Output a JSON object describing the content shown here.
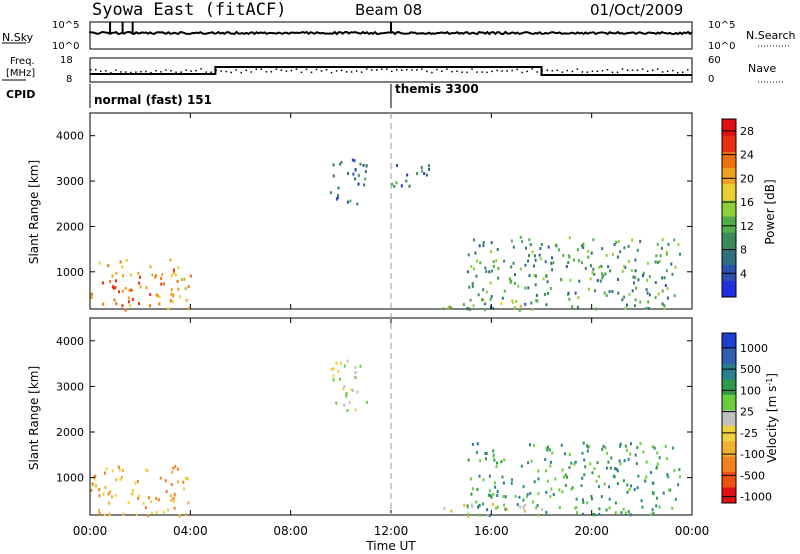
{
  "header": {
    "title": "Syowa East (fitACF)",
    "beam": "Beam 08",
    "date": "01/Oct/2009"
  },
  "top_panel": {
    "left_label": "N.Sky",
    "left_ticks": [
      "10^5",
      "10^0"
    ],
    "right_label": "N.Search",
    "right_ticks": [
      "10^5",
      "10^0"
    ]
  },
  "freq_panel": {
    "left_label_1": "Freq.",
    "left_label_2": "[MHz]",
    "left_ticks": [
      "18",
      "8"
    ],
    "right_label": "Nave",
    "right_ticks": [
      "60",
      "0"
    ]
  },
  "cpid_panel": {
    "label": "CPID",
    "modes": [
      "normal (fast) 151",
      "themis 3300"
    ]
  },
  "colors": {
    "power_scale": [
      "#1f2fe0",
      "#2c4fb0",
      "#2f6f7f",
      "#3a8a5a",
      "#4fb04a",
      "#8fcf3a",
      "#e8d030",
      "#f0a020",
      "#f07010",
      "#e83010",
      "#e01010"
    ],
    "velocity_scale": [
      "#e01010",
      "#f05010",
      "#f08020",
      "#f0b030",
      "#f0d040",
      "#c0c0c0",
      "#6acd3a",
      "#2e9a4a",
      "#2a7f8f",
      "#2f5fb0",
      "#1f3fd0"
    ]
  },
  "chart_data": [
    {
      "type": "heatmap",
      "panel": "power",
      "ylabel": "Slant Range [km]",
      "ylim": [
        180,
        4500
      ],
      "yticks": [
        "1000",
        "2000",
        "3000",
        "4000"
      ],
      "xlim": [
        "00:00",
        "24:00"
      ],
      "xticks": [
        "00:00",
        "04:00",
        "08:00",
        "12:00",
        "16:00",
        "20:00",
        "00:00"
      ],
      "colorbar": {
        "label": "Power [dB]",
        "ticks": [
          "4",
          "8",
          "12",
          "16",
          "20",
          "24",
          "28"
        ],
        "range": [
          0,
          30
        ]
      },
      "echo_regions": [
        {
          "t": [
            0.0,
            4.0
          ],
          "range": [
            180,
            1300
          ],
          "value": 22
        },
        {
          "t": [
            9.5,
            11.0
          ],
          "range": [
            2500,
            3600
          ],
          "value": 6
        },
        {
          "t": [
            12.0,
            13.5
          ],
          "range": [
            2900,
            3500
          ],
          "value": 5
        },
        {
          "t": [
            14.0,
            18.0
          ],
          "range": [
            180,
            450
          ],
          "value": 16
        },
        {
          "t": [
            15.0,
            23.5
          ],
          "range": [
            200,
            1800
          ],
          "value": 10
        }
      ]
    },
    {
      "type": "heatmap",
      "panel": "velocity",
      "ylabel": "Slant Range [km]",
      "xlabel": "Time UT",
      "ylim": [
        180,
        4500
      ],
      "yticks": [
        "1000",
        "2000",
        "3000",
        "4000"
      ],
      "xlim": [
        "00:00",
        "24:00"
      ],
      "xticks": [
        "00:00",
        "04:00",
        "08:00",
        "12:00",
        "16:00",
        "20:00",
        "00:00"
      ],
      "colorbar": {
        "label": "Velocity [m s^-1]",
        "ticks": [
          "1000",
          "500",
          "100",
          "25",
          "-25",
          "-100",
          "-500",
          "-1000"
        ]
      },
      "echo_regions": [
        {
          "t": [
            0.0,
            4.0
          ],
          "range": [
            180,
            1300
          ],
          "value": -300
        },
        {
          "t": [
            9.5,
            11.0
          ],
          "range": [
            2500,
            3600
          ],
          "value": 0
        },
        {
          "t": [
            14.0,
            18.0
          ],
          "range": [
            180,
            450
          ],
          "value": -50
        },
        {
          "t": [
            15.0,
            23.5
          ],
          "range": [
            200,
            1800
          ],
          "value": 150
        }
      ]
    }
  ]
}
